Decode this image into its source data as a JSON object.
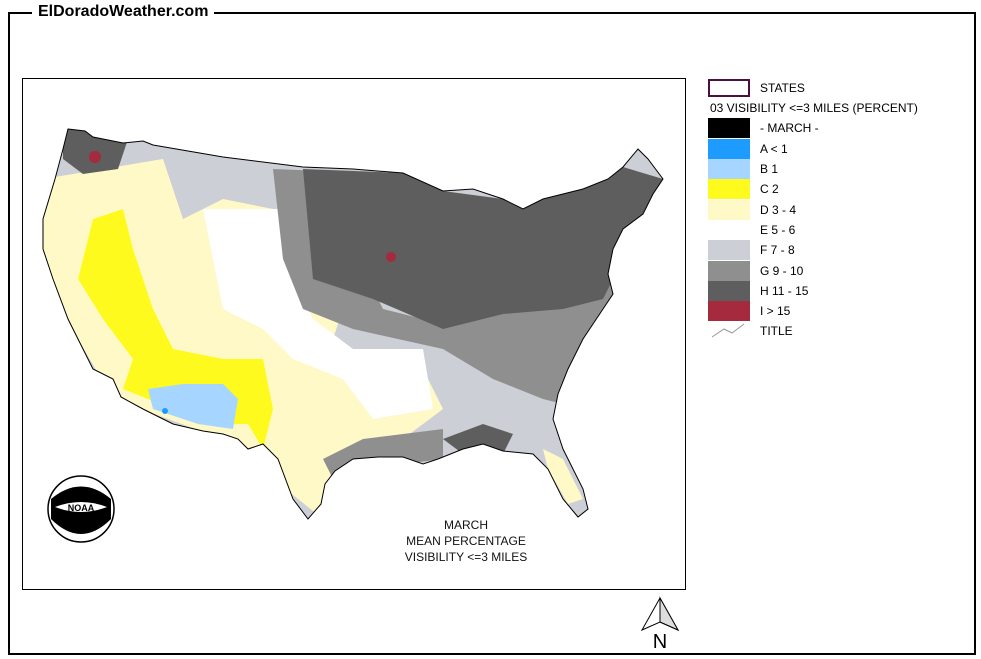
{
  "site_title": "ElDoradoWeather.com",
  "map": {
    "caption_lines": [
      "MARCH",
      "MEAN PERCENTAGE",
      "VISIBILITY <=3 MILES"
    ],
    "logo": "NOAA",
    "north_label": "N"
  },
  "legend": {
    "states_label": "STATES",
    "states_color": "#4a1040",
    "title": "03 VISIBILITY <=3 MILES (PERCENT)",
    "items": [
      {
        "label": "- MARCH -",
        "color": "#000000"
      },
      {
        "label": "A < 1",
        "color": "#1e9bff"
      },
      {
        "label": "B 1",
        "color": "#a6d6ff"
      },
      {
        "label": "C 2",
        "color": "#fffa1e"
      },
      {
        "label": "D 3 - 4",
        "color": "#fff9c8"
      },
      {
        "label": "E 5 - 6",
        "color": "#ffffff"
      },
      {
        "label": "F 7 - 8",
        "color": "#cdcfd6"
      },
      {
        "label": "G 9 - 10",
        "color": "#8f8f8f"
      },
      {
        "label": "H 11 - 15",
        "color": "#5e5e5e"
      },
      {
        "label": "I > 15",
        "color": "#a52a3e"
      }
    ],
    "title_line_label": "TITLE"
  }
}
